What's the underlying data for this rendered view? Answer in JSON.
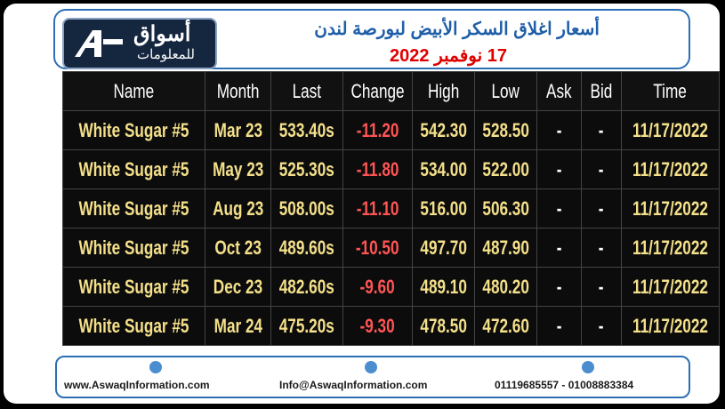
{
  "header": {
    "title": "أسعار اغلاق السكر الأبيض لبورصة لندن",
    "subtitle": "17 نوفمبر 2022"
  },
  "logo": {
    "name": "أسواق",
    "tagline": "للمعلومات"
  },
  "table": {
    "columns": [
      "Name",
      "Month",
      "Last",
      "Change",
      "High",
      "Low",
      "Ask",
      "Bid",
      "Time"
    ],
    "rows": [
      [
        "White Sugar #5",
        "Mar 23",
        "533.40s",
        "-11.20",
        "542.30",
        "528.50",
        "-",
        "-",
        "11/17/2022"
      ],
      [
        "White Sugar #5",
        "May 23",
        "525.30s",
        "-11.80",
        "534.00",
        "522.00",
        "-",
        "-",
        "11/17/2022"
      ],
      [
        "White Sugar #5",
        "Aug 23",
        "508.00s",
        "-11.10",
        "516.00",
        "506.30",
        "-",
        "-",
        "11/17/2022"
      ],
      [
        "White Sugar #5",
        "Oct 23",
        "489.60s",
        "-10.50",
        "497.70",
        "487.90",
        "-",
        "-",
        "11/17/2022"
      ],
      [
        "White Sugar #5",
        "Dec 23",
        "482.60s",
        "-9.60",
        "489.10",
        "480.20",
        "-",
        "-",
        "11/17/2022"
      ],
      [
        "White Sugar #5",
        "Mar 24",
        "475.20s",
        "-9.30",
        "478.50",
        "472.60",
        "-",
        "-",
        "11/17/2022"
      ]
    ]
  },
  "footer": {
    "website": "www.AswaqInformation.com",
    "email": "Info@AswaqInformation.com",
    "phone": "01119685557 - 01008883384"
  }
}
